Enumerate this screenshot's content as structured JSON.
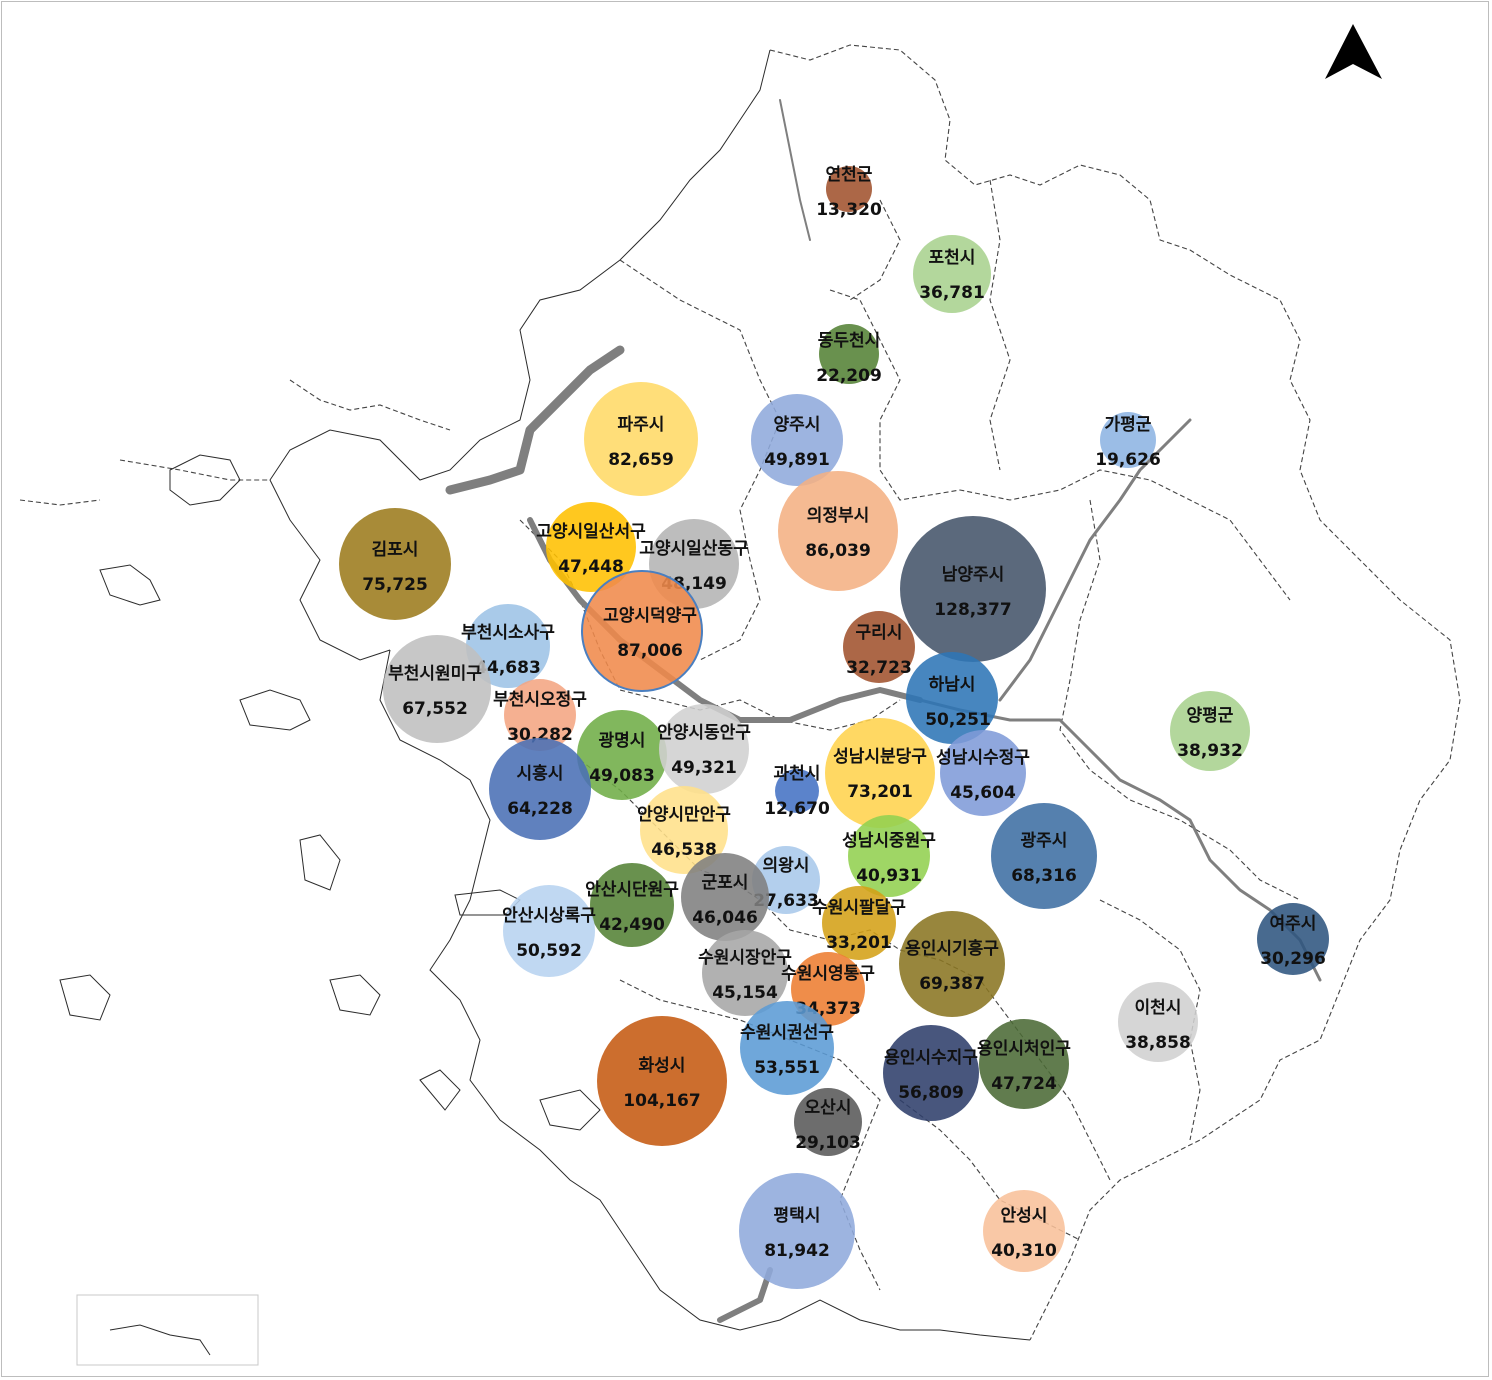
{
  "map": {
    "north_arrow_icon": "north-arrow-icon",
    "bubbles": [
      {
        "id": "yeoncheon",
        "name": "연천군",
        "value": "13,320",
        "color": "#a0522d"
      },
      {
        "id": "pocheon",
        "name": "포천시",
        "value": "36,781",
        "color": "#a9d18e"
      },
      {
        "id": "dongducheon",
        "name": "동두천시",
        "value": "22,209",
        "color": "#548235"
      },
      {
        "id": "gapyeong",
        "name": "가평군",
        "value": "19,626",
        "color": "#8db4e2"
      },
      {
        "id": "paju",
        "name": "파주시",
        "value": "82,659",
        "color": "#ffd966"
      },
      {
        "id": "yangju",
        "name": "양주시",
        "value": "49,891",
        "color": "#8faadc"
      },
      {
        "id": "uijeongbu",
        "name": "의정부시",
        "value": "86,039",
        "color": "#f4b183"
      },
      {
        "id": "gimpo",
        "name": "김포시",
        "value": "75,725",
        "color": "#9c7b1c"
      },
      {
        "id": "ilsanseo",
        "name": "고양시일산서구",
        "value": "47,448",
        "color": "#ffc000"
      },
      {
        "id": "ilsandong",
        "name": "고양시일산동구",
        "value": "48,149",
        "color": "#b4b4b4"
      },
      {
        "id": "namyangju",
        "name": "남양주시",
        "value": "128,377",
        "color": "#44546a"
      },
      {
        "id": "deogyang",
        "name": "고양시덕양구",
        "value": "87,006",
        "color": "#f08a4b"
      },
      {
        "id": "sosa",
        "name": "부천시소사구",
        "value": "44,683",
        "color": "#9dc3e6"
      },
      {
        "id": "guri",
        "name": "구리시",
        "value": "32,723",
        "color": "#a0522d"
      },
      {
        "id": "wonmi",
        "name": "부천시원미구",
        "value": "67,552",
        "color": "#bfbfbf"
      },
      {
        "id": "hanam",
        "name": "하남시",
        "value": "50,251",
        "color": "#2e75b6"
      },
      {
        "id": "ojeong",
        "name": "부천시오정구",
        "value": "30,282",
        "color": "#f4a582"
      },
      {
        "id": "yangpyeong",
        "name": "양평군",
        "value": "38,932",
        "color": "#a9d18e"
      },
      {
        "id": "gwangmyeong",
        "name": "광명시",
        "value": "49,083",
        "color": "#70ad47"
      },
      {
        "id": "dongan",
        "name": "안양시동안구",
        "value": "49,321",
        "color": "#d0d0d0"
      },
      {
        "id": "bundang",
        "name": "성남시분당구",
        "value": "73,201",
        "color": "#ffd34d"
      },
      {
        "id": "sujeong",
        "name": "성남시수정구",
        "value": "45,604",
        "color": "#7f9bd8"
      },
      {
        "id": "siheung",
        "name": "시흥시",
        "value": "64,228",
        "color": "#4a6fb5"
      },
      {
        "id": "gwacheon",
        "name": "과천시",
        "value": "12,670",
        "color": "#4472c4"
      },
      {
        "id": "manan",
        "name": "안양시만안구",
        "value": "46,538",
        "color": "#ffe08a"
      },
      {
        "id": "gwangju",
        "name": "광주시",
        "value": "68,316",
        "color": "#3e6ea3"
      },
      {
        "id": "jungwon",
        "name": "성남시중원구",
        "value": "40,931",
        "color": "#92d050"
      },
      {
        "id": "uiwang",
        "name": "의왕시",
        "value": "27,633",
        "color": "#a9c8ea"
      },
      {
        "id": "danwon",
        "name": "안산시단원구",
        "value": "42,490",
        "color": "#548235"
      },
      {
        "id": "gunpo",
        "name": "군포시",
        "value": "46,046",
        "color": "#7f7f7f"
      },
      {
        "id": "sangnok",
        "name": "안산시상록구",
        "value": "50,592",
        "color": "#b7d3f0"
      },
      {
        "id": "paldal",
        "name": "수원시팔달구",
        "value": "33,201",
        "color": "#d4a017"
      },
      {
        "id": "yeoju",
        "name": "여주시",
        "value": "30,296",
        "color": "#2f5580"
      },
      {
        "id": "giheung",
        "name": "용인시기흥구",
        "value": "69,387",
        "color": "#8a7522"
      },
      {
        "id": "jangan",
        "name": "수원시장안구",
        "value": "45,154",
        "color": "#a6a6a6"
      },
      {
        "id": "yeongtong",
        "name": "수원시영통구",
        "value": "34,373",
        "color": "#ed7d31"
      },
      {
        "id": "icheon",
        "name": "이천시",
        "value": "38,858",
        "color": "#d0d0d0"
      },
      {
        "id": "gwonseon",
        "name": "수원시권선구",
        "value": "53,551",
        "color": "#5b9bd5"
      },
      {
        "id": "hwaseong",
        "name": "화성시",
        "value": "104,167",
        "color": "#c55a11"
      },
      {
        "id": "suji",
        "name": "용인시수지구",
        "value": "56,809",
        "color": "#2f3f6b"
      },
      {
        "id": "cheoin",
        "name": "용인시처인구",
        "value": "47,724",
        "color": "#4b6a35"
      },
      {
        "id": "osan",
        "name": "오산시",
        "value": "29,103",
        "color": "#595959"
      },
      {
        "id": "pyeongtaek",
        "name": "평택시",
        "value": "81,942",
        "color": "#8faadc"
      },
      {
        "id": "anseong",
        "name": "안성시",
        "value": "40,310",
        "color": "#f8c09a"
      }
    ]
  }
}
